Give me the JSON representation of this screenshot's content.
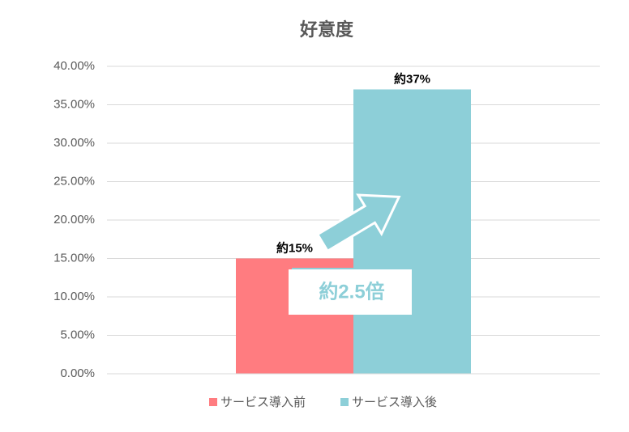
{
  "chart_data": {
    "type": "bar",
    "title": "好意度",
    "categories": [
      null
    ],
    "series": [
      {
        "name": "サービス導入前",
        "color": "#ff7c80",
        "values": [
          15
        ],
        "value_labels": [
          "約15%"
        ]
      },
      {
        "name": "サービス導入後",
        "color": "#8dcfd8",
        "values": [
          37
        ],
        "value_labels": [
          "約37%"
        ]
      }
    ],
    "ylim": [
      0,
      40
    ],
    "yticks": [
      {
        "value": 0,
        "label": "0.00%"
      },
      {
        "value": 5,
        "label": "5.00%"
      },
      {
        "value": 10,
        "label": "10.00%"
      },
      {
        "value": 15,
        "label": "15.00%"
      },
      {
        "value": 20,
        "label": "20.00%"
      },
      {
        "value": 25,
        "label": "25.00%"
      },
      {
        "value": 30,
        "label": "30.00%"
      },
      {
        "value": 35,
        "label": "35.00%"
      },
      {
        "value": 40,
        "label": "40.00%"
      }
    ],
    "grid": true,
    "legend": "bottom",
    "annotation": "約2.5倍"
  }
}
